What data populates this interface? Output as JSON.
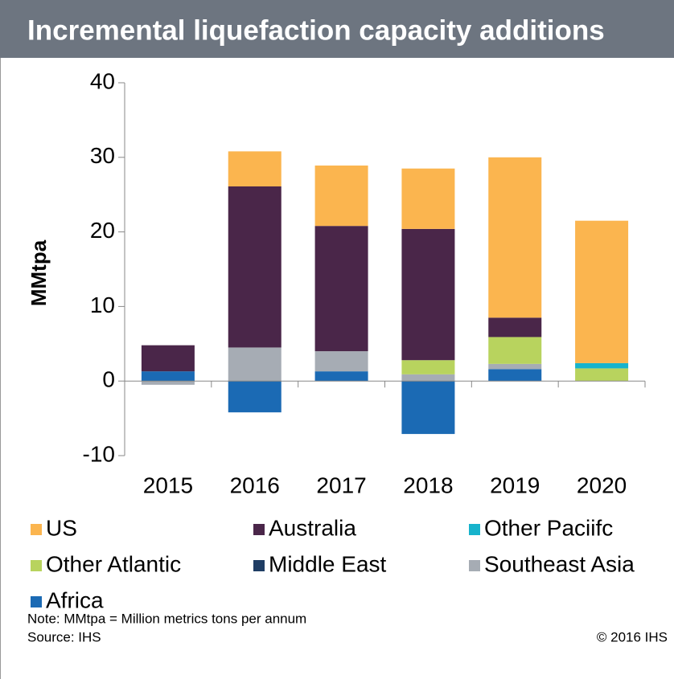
{
  "chart_data": {
    "type": "stacked_bar",
    "title": "Incremental liquefaction capacity additions",
    "y_label": "MMtpa",
    "categories": [
      "2015",
      "2016",
      "2017",
      "2018",
      "2019",
      "2020"
    ],
    "series": [
      {
        "name": "Africa",
        "color": "#1b6ab4",
        "values": [
          1.3,
          -4.2,
          1.3,
          -7.1,
          1.6,
          0
        ]
      },
      {
        "name": "Southeast Asia",
        "color": "#a6acb4",
        "values": [
          -0.5,
          4.5,
          2.7,
          0.9,
          0.7,
          0
        ]
      },
      {
        "name": "Middle East",
        "color": "#1f3d64",
        "values": [
          0,
          0,
          0,
          0,
          0,
          0
        ]
      },
      {
        "name": "Other Atlantic",
        "color": "#b8d35e",
        "values": [
          0,
          0,
          0,
          1.9,
          3.6,
          1.7
        ]
      },
      {
        "name": "Other Paciifc",
        "color": "#17b3cc",
        "values": [
          0,
          0,
          0,
          0,
          0,
          0.7
        ]
      },
      {
        "name": "Australia",
        "color": "#4a2649",
        "values": [
          3.5,
          21.6,
          16.8,
          17.6,
          2.6,
          0
        ]
      },
      {
        "name": "US",
        "color": "#fbb54f",
        "values": [
          0,
          4.7,
          8.1,
          8.1,
          21.5,
          19.1
        ]
      }
    ],
    "ylim": [
      -10,
      40
    ],
    "yticks": [
      -10,
      0,
      10,
      20,
      30,
      40
    ],
    "legend_order": [
      6,
      5,
      4,
      3,
      2,
      1,
      0
    ],
    "note": "Note: MMtpa = Million metrics tons per annum",
    "source": "Source: IHS",
    "copyright": "© 2016 IHS"
  }
}
